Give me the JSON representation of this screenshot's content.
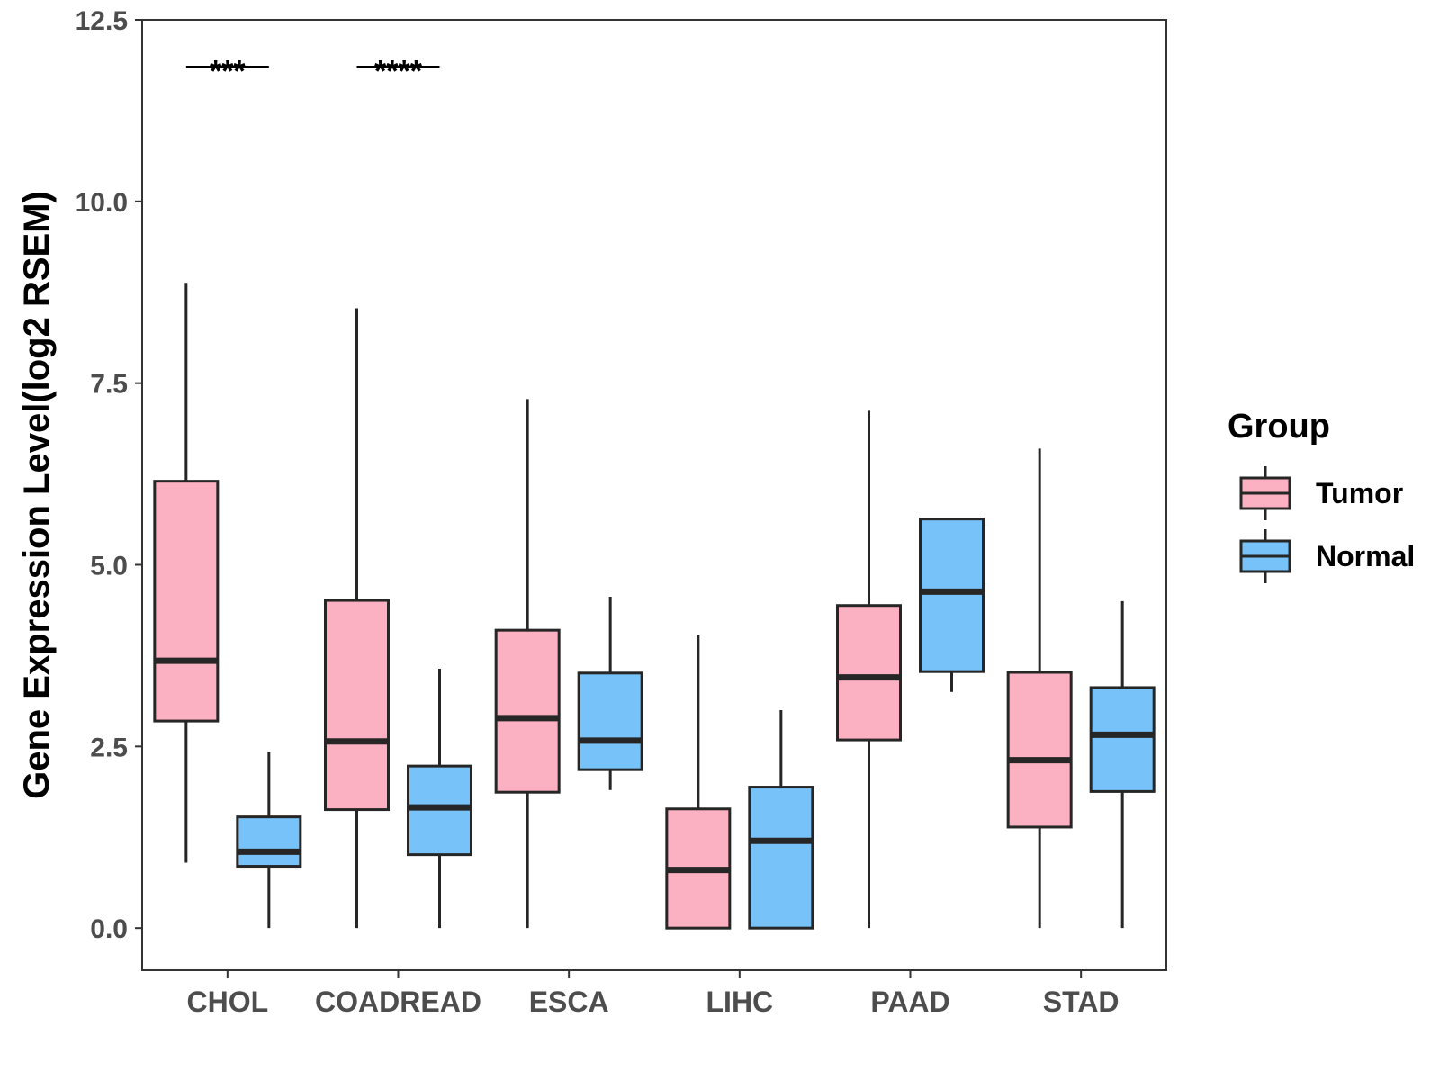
{
  "chart_data": {
    "type": "box",
    "ylabel": "Gene Expression Level(log2 RSEM)",
    "xlabel": "",
    "ylim": [
      -0.58,
      12.5
    ],
    "yticks": [
      0.0,
      2.5,
      5.0,
      7.5,
      10.0,
      12.5
    ],
    "ytick_labels": [
      "0.0",
      "2.5",
      "5.0",
      "7.5",
      "10.0",
      "12.5"
    ],
    "categories": [
      "CHOL",
      "COADREAD",
      "ESCA",
      "LIHC",
      "PAAD",
      "STAD"
    ],
    "legend": {
      "title": "Group",
      "placement": "right",
      "entries": [
        {
          "name": "Tumor",
          "color": "#fcb1c2"
        },
        {
          "name": "Normal",
          "color": "#76c2f9"
        }
      ]
    },
    "series": [
      {
        "name": "Tumor",
        "color": "#fcb1c2",
        "boxes": [
          {
            "category": "CHOL",
            "whisker_low": 0.9,
            "q1": 2.85,
            "median": 3.68,
            "q3": 6.15,
            "whisker_high": 8.88
          },
          {
            "category": "COADREAD",
            "whisker_low": 0.0,
            "q1": 1.63,
            "median": 2.57,
            "q3": 4.51,
            "whisker_high": 8.53
          },
          {
            "category": "ESCA",
            "whisker_low": 0.0,
            "q1": 1.87,
            "median": 2.89,
            "q3": 4.1,
            "whisker_high": 7.28
          },
          {
            "category": "LIHC",
            "whisker_low": 0.0,
            "q1": 0.0,
            "median": 0.8,
            "q3": 1.64,
            "whisker_high": 4.04
          },
          {
            "category": "PAAD",
            "whisker_low": 0.0,
            "q1": 2.59,
            "median": 3.45,
            "q3": 4.44,
            "whisker_high": 7.12
          },
          {
            "category": "STAD",
            "whisker_low": 0.0,
            "q1": 1.39,
            "median": 2.31,
            "q3": 3.52,
            "whisker_high": 6.6
          }
        ]
      },
      {
        "name": "Normal",
        "color": "#76c2f9",
        "boxes": [
          {
            "category": "CHOL",
            "whisker_low": 0.0,
            "q1": 0.85,
            "median": 1.05,
            "q3": 1.53,
            "whisker_high": 2.43
          },
          {
            "category": "COADREAD",
            "whisker_low": 0.0,
            "q1": 1.01,
            "median": 1.66,
            "q3": 2.23,
            "whisker_high": 3.57
          },
          {
            "category": "ESCA",
            "whisker_low": 1.9,
            "q1": 2.18,
            "median": 2.58,
            "q3": 3.51,
            "whisker_high": 4.56
          },
          {
            "category": "LIHC",
            "whisker_low": 0.0,
            "q1": 0.0,
            "median": 1.2,
            "q3": 1.94,
            "whisker_high": 3.0
          },
          {
            "category": "PAAD",
            "whisker_low": 3.25,
            "q1": 3.53,
            "median": 4.63,
            "q3": 5.63,
            "whisker_high": 5.63
          },
          {
            "category": "STAD",
            "whisker_low": 0.0,
            "q1": 1.88,
            "median": 2.66,
            "q3": 3.31,
            "whisker_high": 4.5
          }
        ]
      }
    ],
    "annotations": [
      {
        "category": "CHOL",
        "label": "***",
        "y": 11.85
      },
      {
        "category": "COADREAD",
        "label": "****",
        "y": 11.85
      }
    ]
  }
}
